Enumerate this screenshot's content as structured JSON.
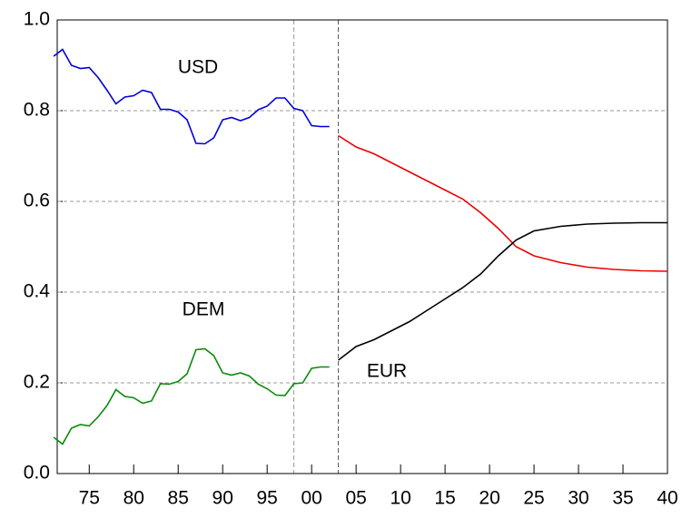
{
  "chart_data": {
    "type": "line",
    "xlim": [
      1971.4,
      2040
    ],
    "ylim": [
      0,
      1
    ],
    "xticks": [
      {
        "value": 1975,
        "label": "75"
      },
      {
        "value": 1980,
        "label": "80"
      },
      {
        "value": 1985,
        "label": "85"
      },
      {
        "value": 1990,
        "label": "90"
      },
      {
        "value": 1995,
        "label": "95"
      },
      {
        "value": 2000,
        "label": "00"
      },
      {
        "value": 2005,
        "label": "05"
      },
      {
        "value": 2010,
        "label": "10"
      },
      {
        "value": 2015,
        "label": "15"
      },
      {
        "value": 2020,
        "label": "20"
      },
      {
        "value": 2025,
        "label": "25"
      },
      {
        "value": 2030,
        "label": "30"
      },
      {
        "value": 2035,
        "label": "35"
      },
      {
        "value": 2040,
        "label": "40"
      }
    ],
    "yticks": [
      {
        "value": 0,
        "label": "0.0"
      },
      {
        "value": 0.2,
        "label": "0.2"
      },
      {
        "value": 0.4,
        "label": "0.4"
      },
      {
        "value": 0.6,
        "label": "0.6"
      },
      {
        "value": 0.8,
        "label": "0.8"
      },
      {
        "value": 1,
        "label": "1.0"
      }
    ],
    "grid": true,
    "vlines": [
      1998,
      2003
    ],
    "series": [
      {
        "name": "USD",
        "color": "#0000dd",
        "x": [
          1971,
          1972,
          1973,
          1974,
          1975,
          1976,
          1977,
          1978,
          1979,
          1980,
          1981,
          1982,
          1983,
          1984,
          1985,
          1986,
          1987,
          1988,
          1989,
          1990,
          1991,
          1992,
          1993,
          1994,
          1995,
          1996,
          1997,
          1998,
          1999,
          2000,
          2001,
          2002
        ],
        "values": [
          0.92,
          0.935,
          0.9,
          0.893,
          0.895,
          0.873,
          0.845,
          0.815,
          0.83,
          0.833,
          0.845,
          0.84,
          0.803,
          0.803,
          0.797,
          0.78,
          0.728,
          0.727,
          0.74,
          0.78,
          0.785,
          0.778,
          0.785,
          0.802,
          0.81,
          0.828,
          0.828,
          0.805,
          0.8,
          0.767,
          0.765,
          0.765
        ]
      },
      {
        "name": "DEM",
        "color": "#0a8a0a",
        "x": [
          1971,
          1972,
          1973,
          1974,
          1975,
          1976,
          1977,
          1978,
          1979,
          1980,
          1981,
          1982,
          1983,
          1984,
          1985,
          1986,
          1987,
          1988,
          1989,
          1990,
          1991,
          1992,
          1993,
          1994,
          1995,
          1996,
          1997,
          1998,
          1999,
          2000,
          2001,
          2002
        ],
        "values": [
          0.08,
          0.065,
          0.1,
          0.108,
          0.105,
          0.125,
          0.15,
          0.185,
          0.17,
          0.167,
          0.155,
          0.16,
          0.198,
          0.197,
          0.203,
          0.22,
          0.273,
          0.275,
          0.26,
          0.222,
          0.217,
          0.222,
          0.215,
          0.197,
          0.187,
          0.173,
          0.172,
          0.198,
          0.2,
          0.232,
          0.235,
          0.235
        ]
      },
      {
        "color": "#ee0000",
        "x": [
          2003,
          2005,
          2007,
          2009,
          2011,
          2013,
          2015,
          2017,
          2019,
          2021,
          2023,
          2025,
          2028,
          2031,
          2034,
          2037,
          2040
        ],
        "values": [
          0.745,
          0.72,
          0.705,
          0.685,
          0.665,
          0.645,
          0.625,
          0.605,
          0.575,
          0.54,
          0.5,
          0.48,
          0.465,
          0.455,
          0.45,
          0.447,
          0.446
        ]
      },
      {
        "name": "EUR",
        "color": "#000000",
        "x": [
          2003,
          2005,
          2007,
          2009,
          2011,
          2013,
          2015,
          2017,
          2019,
          2021,
          2023,
          2025,
          2028,
          2031,
          2034,
          2037,
          2040
        ],
        "values": [
          0.25,
          0.28,
          0.295,
          0.315,
          0.335,
          0.36,
          0.385,
          0.41,
          0.44,
          0.48,
          0.515,
          0.535,
          0.545,
          0.55,
          0.552,
          0.553,
          0.553
        ]
      }
    ]
  }
}
